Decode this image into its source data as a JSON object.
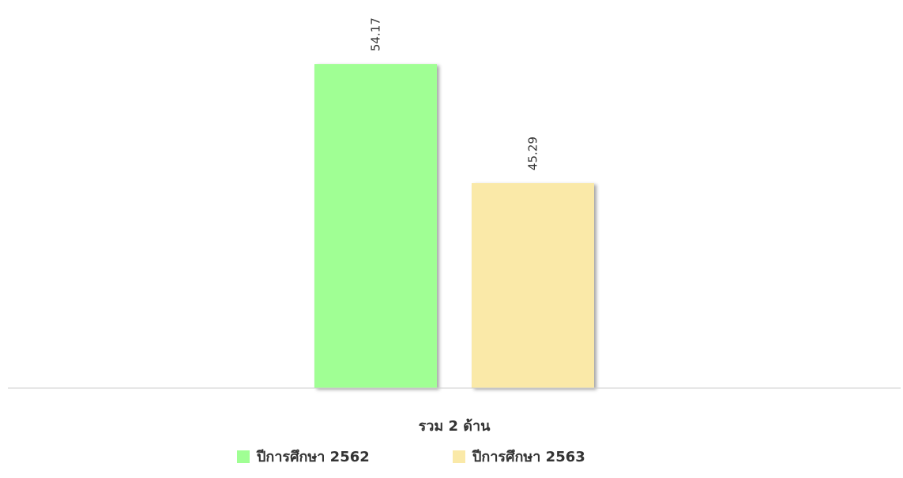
{
  "chart_data": {
    "type": "bar",
    "categories": [
      "รวม 2 ด้าน"
    ],
    "series": [
      {
        "name": "ปีการศึกษา 2562",
        "color": "#a0ff94",
        "values": [
          54.17
        ]
      },
      {
        "name": "ปีการศึกษา 2563",
        "color": "#fae9a8",
        "values": [
          45.29
        ]
      }
    ],
    "ylim": [
      30,
      60
    ]
  }
}
